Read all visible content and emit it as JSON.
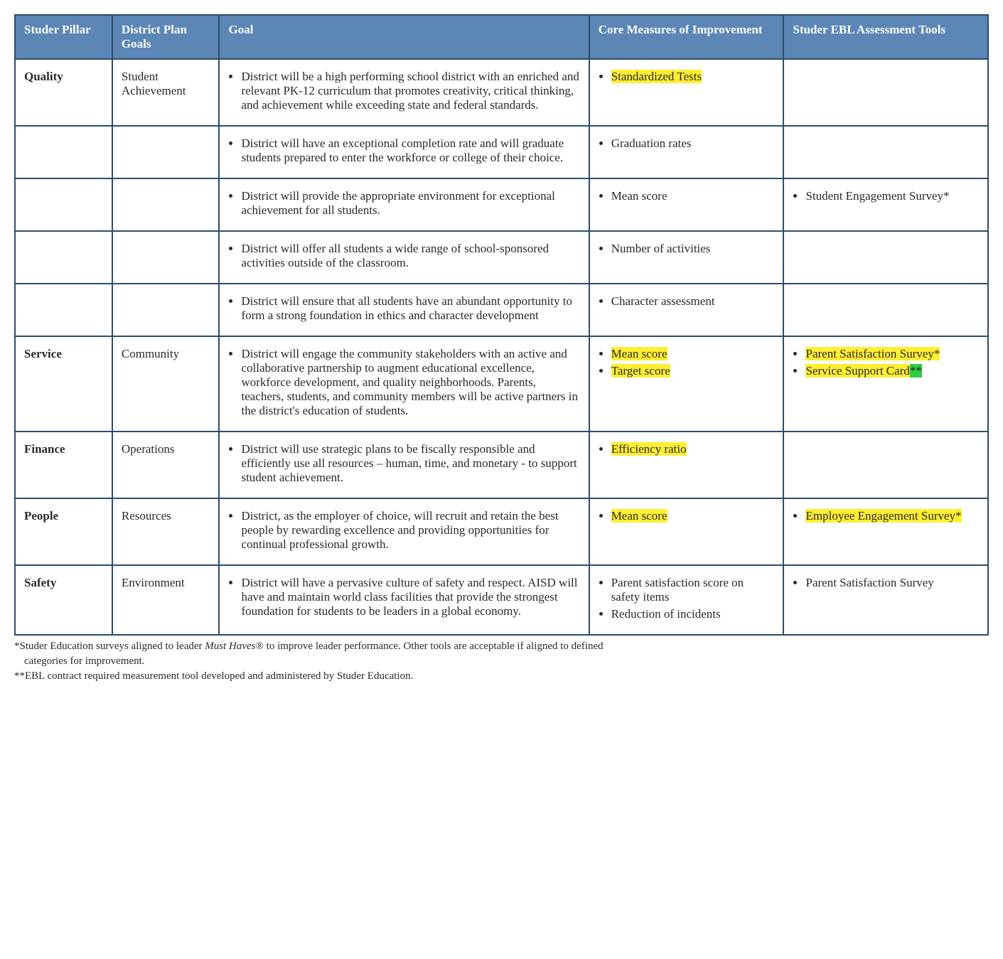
{
  "colors": {
    "header_bg": "#5b86b6",
    "header_text": "#ffffff",
    "border": "#2d4c6b",
    "cell_bg": "#ffffff",
    "body_text": "#2a2a2a",
    "highlight": "#ffee33",
    "green_mark": "#2ecc40"
  },
  "typography": {
    "body_font": "Georgia serif",
    "body_fontsize_pt": 13,
    "footnote_fontsize_pt": 11,
    "header_weight": "bold"
  },
  "columns": [
    {
      "label": "Studer Pillar",
      "width_pct": 10
    },
    {
      "label": "District Plan Goals",
      "width_pct": 11
    },
    {
      "label": "Goal",
      "width_pct": 38
    },
    {
      "label": "Core Measures of Improvement",
      "width_pct": 20
    },
    {
      "label": "Studer EBL Assessment Tools",
      "width_pct": 21
    }
  ],
  "rows": [
    {
      "pillar": "Quality",
      "district": "Student Achievement",
      "goal": "District will be a high performing school district with an enriched and relevant PK-12 curriculum that promotes creativity, critical thinking, and achievement while exceeding state and federal standards.",
      "measures": [
        {
          "text": "Standardized Tests",
          "highlight": true
        }
      ],
      "tools": []
    },
    {
      "pillar": "",
      "district": "",
      "goal": "District will have an exceptional completion rate and will graduate students prepared to enter the workforce or college of their choice.",
      "measures": [
        {
          "text": "Graduation rates",
          "highlight": false
        }
      ],
      "tools": []
    },
    {
      "pillar": "",
      "district": "",
      "goal": "District will provide the appropriate environment for exceptional achievement for all students.",
      "measures": [
        {
          "text": "Mean score",
          "highlight": false
        }
      ],
      "tools": [
        {
          "text": "Student Engagement Survey*",
          "highlight": false
        }
      ]
    },
    {
      "pillar": "",
      "district": "",
      "goal": "District will offer all students a wide range of school-sponsored activities outside of the classroom.",
      "measures": [
        {
          "text": "Number of activities",
          "highlight": false
        }
      ],
      "tools": []
    },
    {
      "pillar": "",
      "district": "",
      "goal": "District will ensure that all students have an abundant opportunity to form a strong foundation in ethics and character development",
      "measures": [
        {
          "text": "Character assessment",
          "highlight": false
        }
      ],
      "tools": []
    },
    {
      "pillar": "Service",
      "district": "Community",
      "goal": "District will engage the community stakeholders with an active and collaborative partnership to augment educational excellence, workforce development, and quality neighborhoods. Parents, teachers, students, and community members will be active partners in the district's education of students.",
      "measures": [
        {
          "text": "Mean score",
          "highlight": true
        },
        {
          "text": "Target score",
          "highlight": true
        }
      ],
      "tools": [
        {
          "text": "Parent Satisfaction Survey*",
          "highlight": true
        },
        {
          "text": "Service Support Card",
          "highlight": true,
          "suffix": "**",
          "suffix_green": true
        }
      ]
    },
    {
      "pillar": "Finance",
      "district": "Operations",
      "goal": "District will use strategic plans to be fiscally responsible and efficiently use all resources – human, time, and monetary - to support student achievement.",
      "measures": [
        {
          "text": "Efficiency ratio",
          "highlight": true
        }
      ],
      "tools": []
    },
    {
      "pillar": "People",
      "district": "Resources",
      "goal": "District, as the employer of choice, will recruit and retain the best people by rewarding excellence and providing opportunities for continual professional growth.",
      "measures": [
        {
          "text": "Mean score",
          "highlight": true
        }
      ],
      "tools": [
        {
          "text": "Employee Engagement Survey*",
          "highlight": true
        }
      ]
    },
    {
      "pillar": "Safety",
      "district": "Environment",
      "goal": "District will have a pervasive culture of safety and respect. AISD will have and maintain world class facilities that provide the strongest foundation for students to be leaders in a global economy.",
      "measures": [
        {
          "text": "Parent satisfaction score on safety items",
          "highlight": false
        },
        {
          "text": "Reduction of incidents",
          "highlight": false
        }
      ],
      "tools": [
        {
          "text": "Parent Satisfaction Survey",
          "highlight": false
        }
      ]
    }
  ],
  "footnotes": {
    "line1_prefix": "*Studer Education surveys aligned to leader ",
    "line1_italic": "Must Haves",
    "line1_reg": "®",
    "line1_rest": " to improve leader performance. Other tools are acceptable if aligned to defined",
    "line1_cont": "categories for improvement.",
    "line2": "**EBL contract required measurement tool developed and administered by Studer Education."
  }
}
